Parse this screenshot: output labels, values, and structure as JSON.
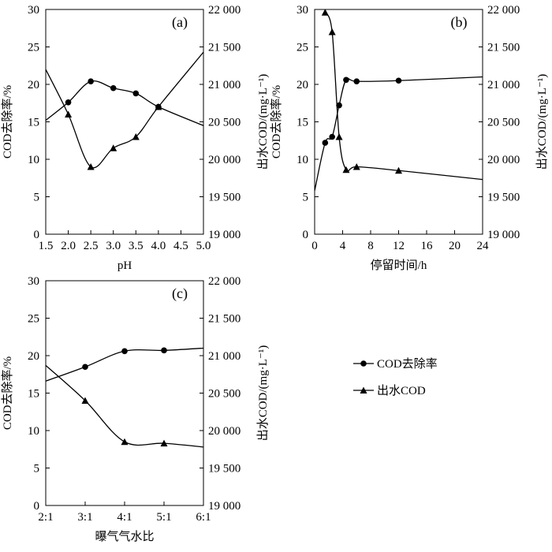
{
  "chart_data": [
    {
      "type": "line",
      "panel_label": "(a)",
      "xlabel": "pH",
      "ylabel": "COD去除率/%",
      "y2label": "出水COD/(mg·L⁻¹)",
      "xlim": [
        1.5,
        5.0
      ],
      "ylim": [
        0,
        30
      ],
      "y2lim": [
        19000,
        22000
      ],
      "xticks": [
        "1.5",
        "2.0",
        "2.5",
        "3.0",
        "3.5",
        "4.0",
        "4.5",
        "5.0"
      ],
      "yticks": [
        "0",
        "5",
        "10",
        "15",
        "20",
        "25",
        "30"
      ],
      "y2ticks": [
        "19 000",
        "19 500",
        "20 000",
        "20 500",
        "21 000",
        "21 500",
        "22 000"
      ],
      "series": [
        {
          "name": "COD去除率",
          "axis": "left",
          "marker": "circle",
          "x": [
            1.5,
            2.0,
            2.5,
            3.0,
            3.5,
            4.0,
            5.0
          ],
          "y": [
            15.2,
            17.6,
            20.4,
            19.5,
            18.8,
            17.0,
            14.5
          ]
        },
        {
          "name": "出水COD",
          "axis": "right",
          "marker": "triangle",
          "x": [
            1.5,
            2.0,
            2.5,
            3.0,
            3.5,
            4.0,
            5.0
          ],
          "y": [
            21200,
            20600,
            19900,
            20150,
            20300,
            20700,
            21430
          ]
        }
      ]
    },
    {
      "type": "line",
      "panel_label": "(b)",
      "xlabel": "停留时间/h",
      "ylabel": "COD去除率/%",
      "y2label": "出水COD/(mg·L⁻¹)",
      "xlim": [
        0,
        24
      ],
      "ylim": [
        0,
        30
      ],
      "y2lim": [
        19000,
        22000
      ],
      "xticks": [
        "0",
        "4",
        "8",
        "12",
        "16",
        "20",
        "24"
      ],
      "yticks": [
        "0",
        "5",
        "10",
        "15",
        "20",
        "25",
        "30"
      ],
      "y2ticks": [
        "19 000",
        "19 500",
        "20 000",
        "20 500",
        "21 000",
        "21 500",
        "22 000"
      ],
      "series": [
        {
          "name": "COD去除率",
          "axis": "left",
          "marker": "circle",
          "x": [
            0,
            1.5,
            2.5,
            3.5,
            4.5,
            6,
            12,
            24
          ],
          "y": [
            5.8,
            12.2,
            13.0,
            17.2,
            20.6,
            20.4,
            20.5,
            21.0
          ]
        },
        {
          "name": "出水COD",
          "axis": "right",
          "marker": "triangle",
          "x": [
            1.5,
            2.5,
            3.5,
            4.5,
            6,
            12,
            24
          ],
          "y": [
            21960,
            21700,
            20300,
            19860,
            19900,
            19850,
            19730
          ]
        }
      ]
    },
    {
      "type": "line",
      "panel_label": "(c)",
      "xlabel": "曝气气水比",
      "ylabel": "COD去除率/%",
      "y2label": "出水COD/(mg·L⁻¹)",
      "xlim": [
        0,
        4
      ],
      "ylim": [
        0,
        30
      ],
      "y2lim": [
        19000,
        22000
      ],
      "xticks": [
        "2:1",
        "3:1",
        "4:1",
        "5:1",
        "6:1"
      ],
      "yticks": [
        "0",
        "5",
        "10",
        "15",
        "20",
        "25",
        "30"
      ],
      "y2ticks": [
        "19 000",
        "19 500",
        "20 000",
        "20 500",
        "21 000",
        "21 500",
        "22 000"
      ],
      "series": [
        {
          "name": "COD去除率",
          "axis": "left",
          "marker": "circle",
          "x": [
            0,
            1,
            2,
            3,
            4
          ],
          "y": [
            16.6,
            18.5,
            20.6,
            20.7,
            21.0
          ]
        },
        {
          "name": "出水COD",
          "axis": "right",
          "marker": "triangle",
          "x": [
            0,
            1,
            2,
            3,
            4
          ],
          "y": [
            20870,
            20400,
            19850,
            19830,
            19780
          ]
        }
      ]
    }
  ],
  "legend": {
    "entries": [
      {
        "label": "COD去除率",
        "marker": "circle"
      },
      {
        "label": "出水COD",
        "marker": "triangle"
      }
    ]
  }
}
